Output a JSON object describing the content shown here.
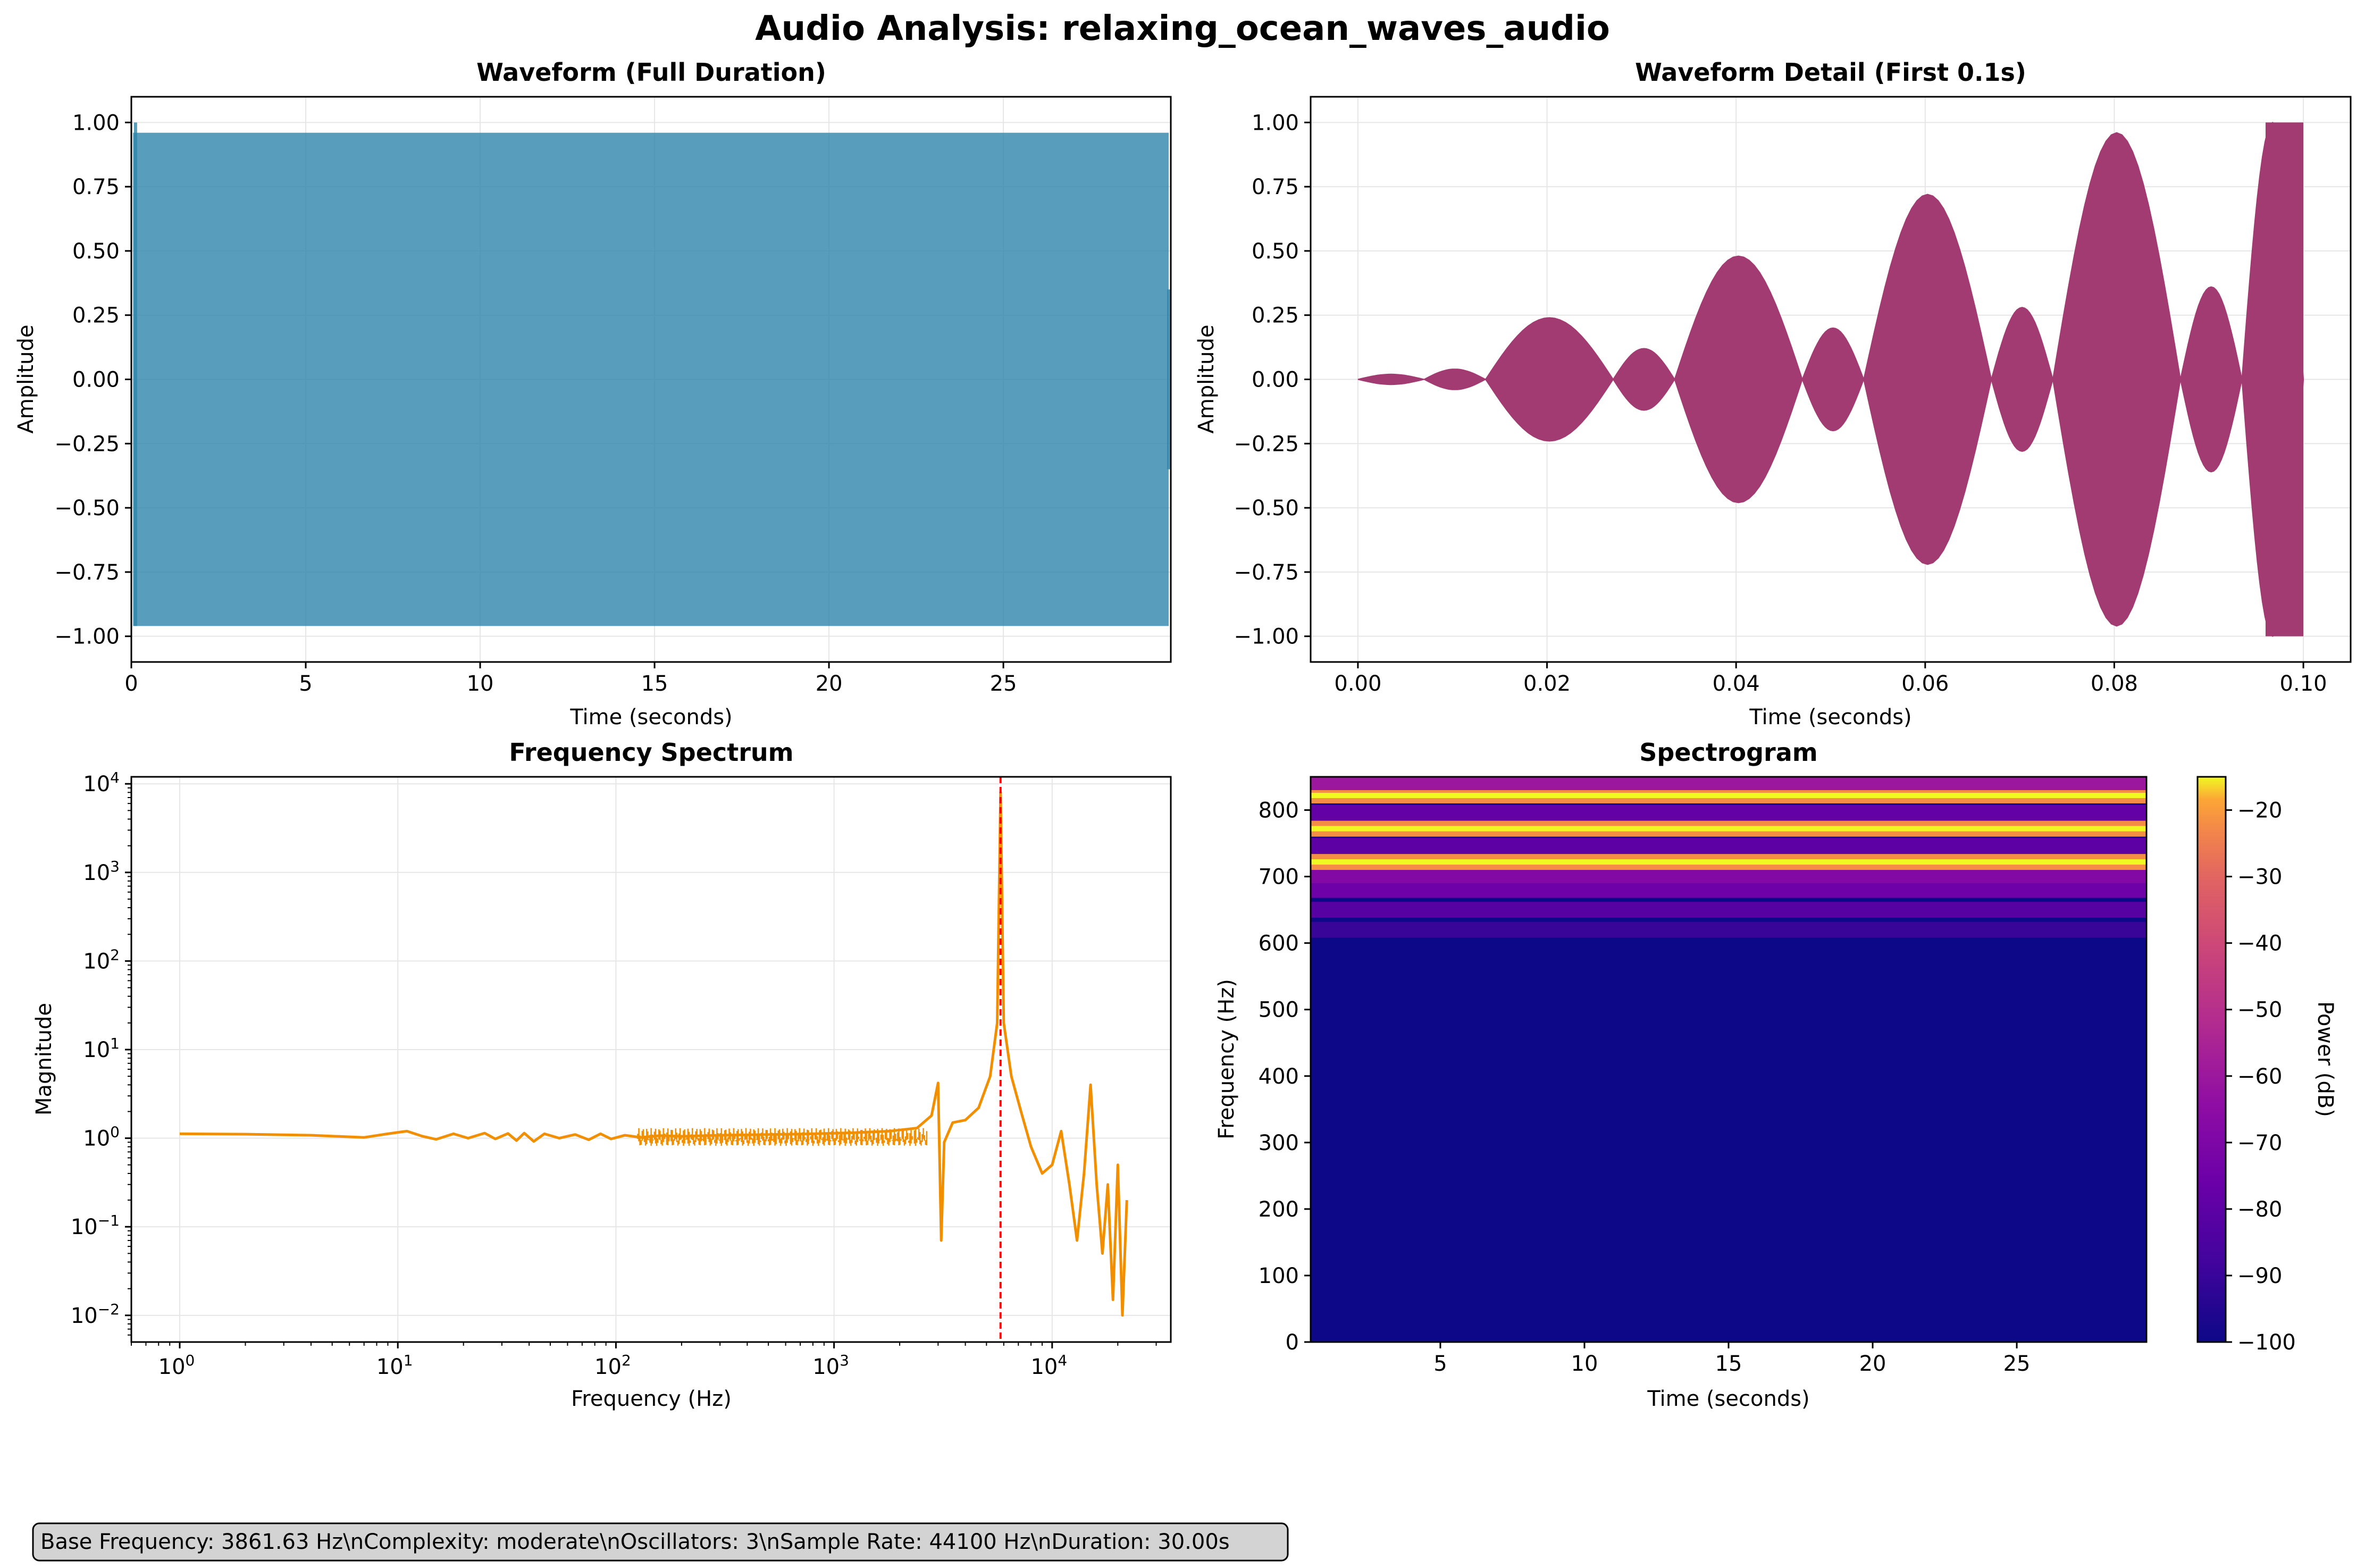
{
  "suptitle": "Audio Analysis: relaxing_ocean_waves_audio",
  "info_box": "Base Frequency: 3861.63 Hz\\nComplexity: moderate\\nOscillators: 3\\nSample Rate: 44100 Hz\\nDuration: 30.00s",
  "colors": {
    "waveform_full": "#2E86AB",
    "waveform_detail": "#A23B72",
    "spectrum": "#F18F01",
    "peak_line": "#ff0000"
  },
  "chart_data": [
    {
      "type": "area",
      "title": "Waveform (Full Duration)",
      "xlabel": "Time (seconds)",
      "ylabel": "Amplitude",
      "xlim": [
        0,
        29.8
      ],
      "ylim": [
        -1.1,
        1.1
      ],
      "xticks": [
        "0",
        "5",
        "10",
        "15",
        "20",
        "25"
      ],
      "yticks": [
        "1.00",
        "0.75",
        "0.50",
        "0.25",
        "0.00",
        "−0.25",
        "−0.50",
        "−0.75",
        "−1.00"
      ],
      "envelope_amplitude": 0.96,
      "peak_amplitude": 1.0,
      "grid": true
    },
    {
      "type": "line",
      "title": "Waveform Detail (First 0.1s)",
      "xlabel": "Time (seconds)",
      "ylabel": "Amplitude",
      "xlim": [
        -0.005,
        0.105
      ],
      "ylim": [
        -1.1,
        1.1
      ],
      "xticks": [
        "0.00",
        "0.02",
        "0.04",
        "0.06",
        "0.08",
        "0.10"
      ],
      "yticks": [
        "1.00",
        "0.75",
        "0.50",
        "0.25",
        "0.00",
        "−0.25",
        "−0.50",
        "−0.75",
        "−1.00"
      ],
      "envelope_lobes": [
        {
          "x": [
            0.0,
            0.007
          ],
          "amplitude": 0.02
        },
        {
          "x": [
            0.007,
            0.0135
          ],
          "amplitude": 0.04
        },
        {
          "x": [
            0.0135,
            0.027
          ],
          "amplitude": 0.24
        },
        {
          "x": [
            0.027,
            0.0335
          ],
          "amplitude": 0.12
        },
        {
          "x": [
            0.0335,
            0.047
          ],
          "amplitude": 0.48
        },
        {
          "x": [
            0.047,
            0.0535
          ],
          "amplitude": 0.2
        },
        {
          "x": [
            0.0535,
            0.067
          ],
          "amplitude": 0.72
        },
        {
          "x": [
            0.067,
            0.0735
          ],
          "amplitude": 0.28
        },
        {
          "x": [
            0.0735,
            0.087
          ],
          "amplitude": 0.96
        },
        {
          "x": [
            0.087,
            0.0935
          ],
          "amplitude": 0.36
        },
        {
          "x": [
            0.0935,
            0.1
          ],
          "amplitude": 1.0
        }
      ],
      "grid": true
    },
    {
      "type": "line",
      "title": "Frequency Spectrum",
      "xlabel": "Frequency (Hz)",
      "ylabel": "Magnitude",
      "xscale": "log",
      "yscale": "log",
      "xlim": [
        0.6,
        35000
      ],
      "ylim": [
        0.005,
        12000
      ],
      "xticks": [
        1,
        10,
        100,
        1000,
        10000
      ],
      "yticks": [
        0.01,
        0.1,
        1,
        10,
        100,
        1000,
        10000
      ],
      "peak_frequency": 5800,
      "points": [
        [
          1,
          1.12
        ],
        [
          2,
          1.11
        ],
        [
          4,
          1.08
        ],
        [
          7,
          1.02
        ],
        [
          9,
          1.12
        ],
        [
          11,
          1.2
        ],
        [
          13,
          1.05
        ],
        [
          15,
          0.97
        ],
        [
          18,
          1.12
        ],
        [
          21,
          1.0
        ],
        [
          25,
          1.14
        ],
        [
          28,
          0.98
        ],
        [
          32,
          1.13
        ],
        [
          35,
          0.94
        ],
        [
          38,
          1.14
        ],
        [
          42,
          0.92
        ],
        [
          47,
          1.12
        ],
        [
          55,
          1.0
        ],
        [
          65,
          1.1
        ],
        [
          75,
          0.96
        ],
        [
          85,
          1.12
        ],
        [
          95,
          0.98
        ],
        [
          110,
          1.08
        ],
        [
          130,
          1.02
        ],
        [
          160,
          1.07
        ],
        [
          200,
          1.05
        ],
        [
          300,
          1.08
        ],
        [
          500,
          1.1
        ],
        [
          800,
          1.12
        ],
        [
          1200,
          1.15
        ],
        [
          1800,
          1.2
        ],
        [
          2400,
          1.3
        ],
        [
          2800,
          1.8
        ],
        [
          3000,
          4.2
        ],
        [
          3100,
          0.07
        ],
        [
          3200,
          0.9
        ],
        [
          3500,
          1.5
        ],
        [
          4000,
          1.6
        ],
        [
          4600,
          2.2
        ],
        [
          5200,
          5.0
        ],
        [
          5600,
          20
        ],
        [
          5800,
          8000
        ],
        [
          6000,
          20
        ],
        [
          6500,
          5.0
        ],
        [
          7200,
          2.0
        ],
        [
          8000,
          0.8
        ],
        [
          9000,
          0.4
        ],
        [
          10000,
          0.5
        ],
        [
          11000,
          1.2
        ],
        [
          12000,
          0.3
        ],
        [
          13000,
          0.07
        ],
        [
          14000,
          0.4
        ],
        [
          15000,
          4.0
        ],
        [
          16000,
          0.3
        ],
        [
          17000,
          0.05
        ],
        [
          18000,
          0.3
        ],
        [
          19000,
          0.015
        ],
        [
          20000,
          0.5
        ],
        [
          21000,
          0.01
        ],
        [
          22000,
          0.2
        ]
      ],
      "grid": true
    },
    {
      "type": "heatmap",
      "title": "Spectrogram",
      "xlabel": "Time (seconds)",
      "ylabel": "Frequency (Hz)",
      "xlim": [
        0.5,
        29.5
      ],
      "ylim": [
        0,
        850
      ],
      "xticks": [
        5,
        10,
        15,
        20,
        25
      ],
      "yticks": [
        0,
        100,
        200,
        300,
        400,
        500,
        600,
        700,
        800
      ],
      "colormap": "plasma",
      "colorbar_label": "Power (dB)",
      "colorbar_range": [
        -100,
        -15
      ],
      "colorbar_ticks": [
        "−20",
        "−30",
        "−40",
        "−50",
        "−60",
        "−70",
        "−80",
        "−90",
        "−100"
      ],
      "background_db": -100,
      "bands": [
        {
          "frequency": 620,
          "power_db": -90
        },
        {
          "frequency": 650,
          "power_db": -82
        },
        {
          "frequency": 680,
          "power_db": -75
        },
        {
          "frequency": 702,
          "power_db": -68
        },
        {
          "frequency": 722,
          "power_db": -22
        },
        {
          "frequency": 746,
          "power_db": -80
        },
        {
          "frequency": 772,
          "power_db": -22
        },
        {
          "frequency": 796,
          "power_db": -78
        },
        {
          "frequency": 822,
          "power_db": -22
        },
        {
          "frequency": 842,
          "power_db": -60
        }
      ]
    }
  ]
}
